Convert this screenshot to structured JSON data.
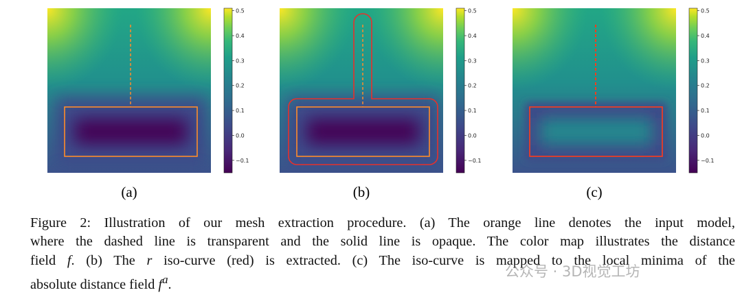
{
  "figure": {
    "panels": [
      {
        "label": "(a)",
        "colorbar": {
          "ylim": [
            -0.15,
            0.51
          ],
          "yticks": [
            {
              "value": -0.1,
              "label": "−0.1"
            },
            {
              "value": 0,
              "label": "0.0"
            },
            0.1,
            0.2,
            0.3,
            0.4,
            0.5
          ]
        }
      },
      {
        "label": "(b)",
        "colorbar": {
          "ylim": [
            -0.15,
            0.51
          ],
          "yticks": [
            {
              "value": -0.1,
              "label": "−0.1"
            },
            {
              "value": 0,
              "label": "0.0"
            },
            0.1,
            0.2,
            0.3,
            0.4,
            0.5
          ]
        }
      },
      {
        "label": "(c)",
        "colorbar": {
          "ylim": [
            -0.15,
            0.51
          ],
          "yticks": [
            {
              "value": -0.1,
              "label": "−0.1"
            },
            {
              "value": 0,
              "label": "0.0"
            },
            0.1,
            0.2,
            0.3,
            0.4,
            0.5
          ]
        }
      }
    ],
    "caption": {
      "lines": [
        [
          "Figure 2: Illustration of our mesh extraction procedure. (a) The orange line denotes the input model,"
        ],
        [
          "where the dashed line is transparent and the solid line is opaque. The color map illustrates the distance"
        ],
        [
          "field ",
          "f",
          ". (b) The ",
          "r",
          " iso-curve (red) is extracted. (c) The iso-curve is mapped to the local minima of the"
        ],
        [
          "absolute distance field ",
          "f",
          "a",
          "."
        ]
      ]
    },
    "watermark": "公众号 · 3D视觉工坊"
  }
}
